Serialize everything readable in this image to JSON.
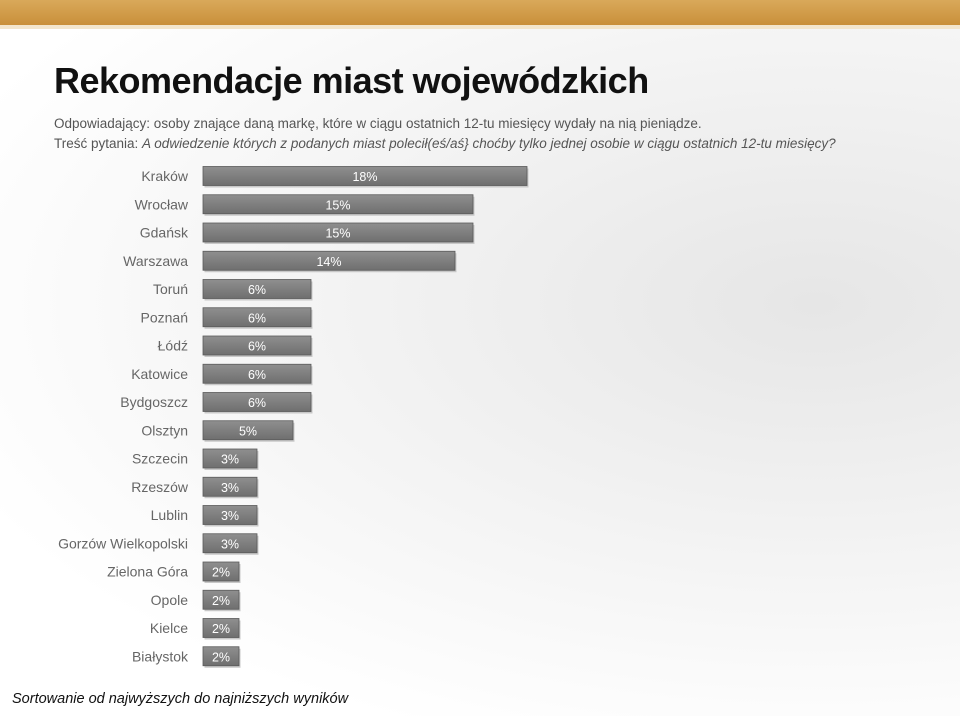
{
  "header": {
    "title": "Rekomendacje miast wojewódzkich",
    "subtitle": "Odpowiadający: osoby znające daną markę, które w ciągu ostatnich 12-tu miesięcy wydały na nią pieniądze.",
    "question_prefix": "Treść pytania: ",
    "question_text": "A odwiedzenie których  z podanych miast polecił(eś/aś} choćby tylko jednej osobie w ciągu ostatnich 12-tu miesięcy?"
  },
  "footer": {
    "note": "Sortowanie od najwyższych do najniższych wyników"
  },
  "colors": {
    "bar_fill_top": "#8f8f8f",
    "bar_fill_bottom": "#6f6f6f",
    "bar_edge": "#5a5a5a",
    "top_band": "#c98f3a"
  },
  "chart_data": {
    "type": "bar",
    "orientation": "horizontal",
    "categories": [
      "Kraków",
      "Wrocław",
      "Gdańsk",
      "Warszawa",
      "Toruń",
      "Poznań",
      "Łódź",
      "Katowice",
      "Bydgoszcz",
      "Olsztyn",
      "Szczecin",
      "Rzeszów",
      "Lublin",
      "Gorzów Wielkopolski",
      "Zielona Góra",
      "Opole",
      "Kielce",
      "Białystok"
    ],
    "values": [
      18,
      15,
      15,
      14,
      6,
      6,
      6,
      6,
      6,
      5,
      3,
      3,
      3,
      3,
      2,
      2,
      2,
      2
    ],
    "value_labels": [
      "18%",
      "15%",
      "15%",
      "14%",
      "6%",
      "6%",
      "6%",
      "6%",
      "6%",
      "5%",
      "3%",
      "3%",
      "3%",
      "3%",
      "2%",
      "2%",
      "2%",
      "2%"
    ],
    "unit": "%",
    "xlim": [
      0,
      18
    ],
    "grid": false,
    "legend": "none"
  }
}
